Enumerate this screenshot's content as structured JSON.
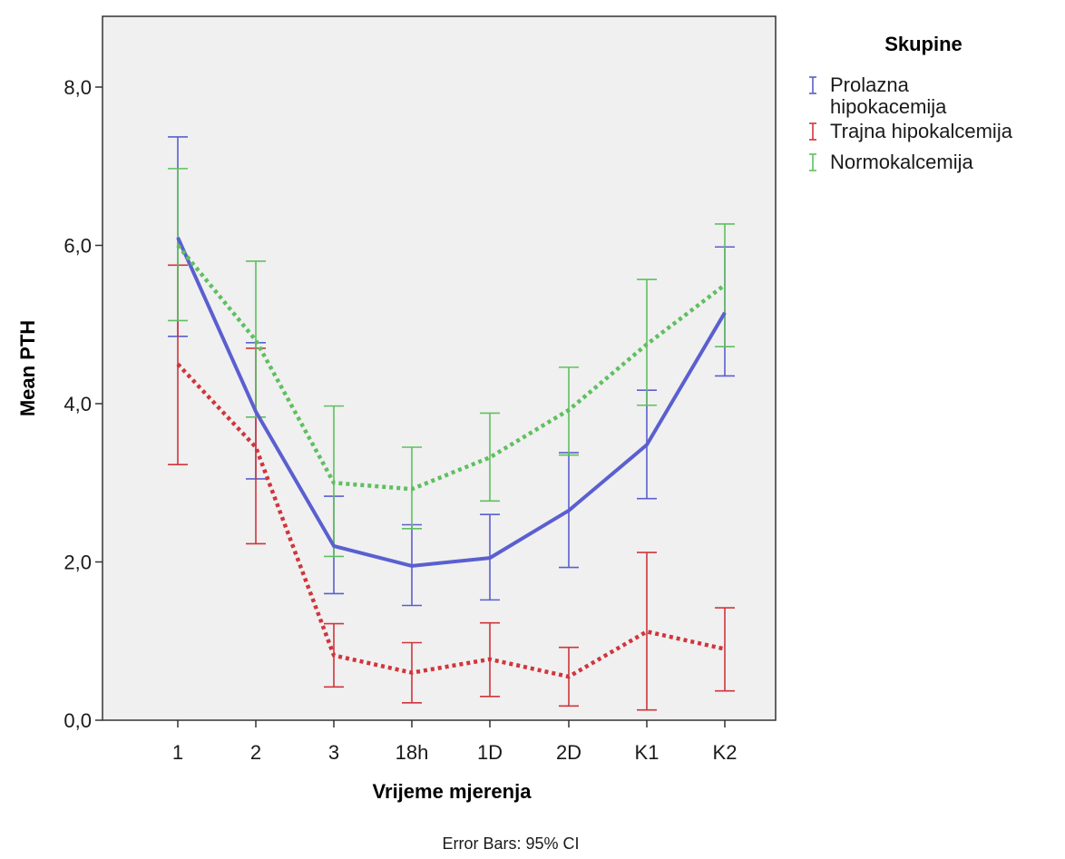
{
  "chart_data": {
    "type": "line",
    "xlabel": "Vrijeme mjerenja",
    "ylabel": "Mean PTH",
    "categories": [
      "1",
      "2",
      "3",
      "18h",
      "1D",
      "2D",
      "K1",
      "K2"
    ],
    "ylim": [
      0,
      8.8
    ],
    "yticks": [
      0,
      2,
      4,
      6,
      8
    ],
    "ytick_labels": [
      "0,0",
      "2,0",
      "4,0",
      "6,0",
      "8,0"
    ],
    "grid": false,
    "error_bars_note": "Error Bars: 95% CI",
    "legend": {
      "title": "Skupine",
      "placement": "right",
      "entries": [
        {
          "lines": [
            "Prolazna",
            "hipokacemija"
          ]
        },
        {
          "lines": [
            "Trajna hipokalcemija"
          ]
        },
        {
          "lines": [
            "Normokalcemija"
          ]
        }
      ]
    },
    "series": [
      {
        "name": "Prolazna hipokacemija",
        "color": "#5a5fd0",
        "line_style": "solid",
        "values": [
          6.1,
          3.9,
          2.2,
          1.95,
          2.05,
          2.65,
          3.48,
          5.15
        ],
        "ci_low": [
          4.85,
          3.05,
          1.6,
          1.45,
          1.52,
          1.93,
          2.8,
          4.35
        ],
        "ci_high": [
          7.37,
          4.77,
          2.83,
          2.47,
          2.6,
          3.38,
          4.17,
          5.98
        ]
      },
      {
        "name": "Trajna hipokalcemija",
        "color": "#d0353c",
        "line_style": "dotted",
        "values": [
          4.5,
          3.45,
          0.82,
          0.6,
          0.77,
          0.55,
          1.12,
          0.9
        ],
        "ci_low": [
          3.23,
          2.23,
          0.42,
          0.22,
          0.3,
          0.18,
          0.13,
          0.37
        ],
        "ci_high": [
          5.75,
          4.7,
          1.22,
          0.98,
          1.23,
          0.92,
          2.12,
          1.42
        ]
      },
      {
        "name": "Normokalcemija",
        "color": "#5fbf5f",
        "line_style": "dotted",
        "values": [
          6.0,
          4.8,
          3.0,
          2.92,
          3.32,
          3.92,
          4.75,
          5.5
        ],
        "ci_low": [
          5.05,
          3.83,
          2.07,
          2.42,
          2.77,
          3.35,
          3.98,
          4.72
        ],
        "ci_high": [
          6.97,
          5.8,
          3.97,
          3.45,
          3.88,
          4.46,
          5.57,
          6.27
        ]
      }
    ]
  }
}
